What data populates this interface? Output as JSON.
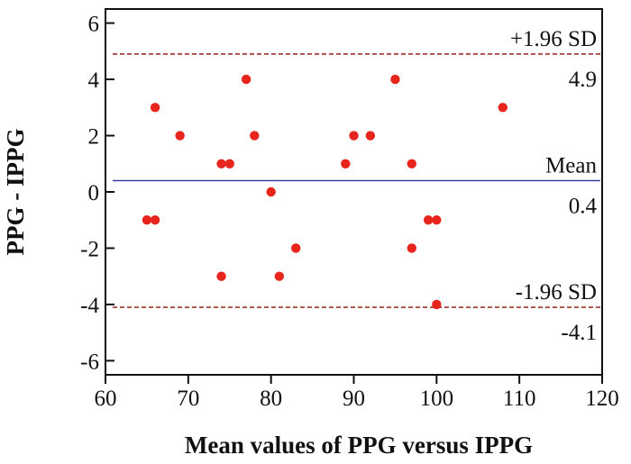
{
  "chart_data": {
    "type": "scatter",
    "title": "",
    "xlabel": "Mean values of PPG versus IPPG",
    "ylabel": "PPG - IPPG",
    "xlim": [
      60,
      120
    ],
    "ylim": [
      -6.5,
      6.5
    ],
    "xticks": [
      60,
      70,
      80,
      90,
      100,
      110,
      120
    ],
    "yticks": [
      -6,
      -4,
      -2,
      0,
      2,
      4,
      6
    ],
    "grid": false,
    "points": [
      {
        "x": 65,
        "y": -1
      },
      {
        "x": 66,
        "y": -1
      },
      {
        "x": 66,
        "y": 3
      },
      {
        "x": 69,
        "y": 2
      },
      {
        "x": 74,
        "y": 1
      },
      {
        "x": 75,
        "y": 1
      },
      {
        "x": 74,
        "y": -3
      },
      {
        "x": 77,
        "y": 4
      },
      {
        "x": 78,
        "y": 2
      },
      {
        "x": 80,
        "y": 0
      },
      {
        "x": 81,
        "y": -3
      },
      {
        "x": 83,
        "y": -2
      },
      {
        "x": 89,
        "y": 1
      },
      {
        "x": 90,
        "y": 2
      },
      {
        "x": 92,
        "y": 2
      },
      {
        "x": 95,
        "y": 4
      },
      {
        "x": 97,
        "y": 1
      },
      {
        "x": 97,
        "y": -2
      },
      {
        "x": 99,
        "y": -1
      },
      {
        "x": 100,
        "y": -1
      },
      {
        "x": 100,
        "y": -4
      },
      {
        "x": 108,
        "y": 3
      }
    ],
    "reference_lines": [
      {
        "name": "upper-loa",
        "label": "+1.96 SD",
        "value": 4.9,
        "value_text": "4.9",
        "style": "dashed",
        "color": "#a0302a"
      },
      {
        "name": "mean",
        "label": "Mean",
        "value": 0.4,
        "value_text": "0.4",
        "style": "solid",
        "color": "#3a3aa8"
      },
      {
        "name": "lower-loa",
        "label": "-1.96 SD",
        "value": -4.1,
        "value_text": "-4.1",
        "style": "dashed",
        "color": "#a0302a"
      }
    ],
    "point_color": "#e8251c"
  }
}
